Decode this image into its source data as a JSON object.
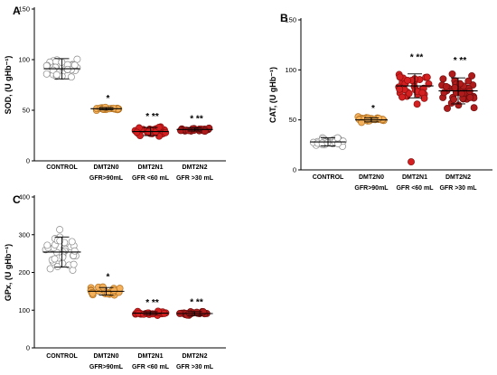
{
  "colors": {
    "control_fill": "#ffffff",
    "control_stroke": "#8a8a8a",
    "dmt2n0_fill": "#f4b05a",
    "dmt2n0_stroke": "#b07020",
    "dmt2n1_fill": "#d42020",
    "dmt2n1_stroke": "#8a1010",
    "dmt2n2_fill": "#b01c1c",
    "dmt2n2_stroke": "#6e0e0e"
  },
  "chart_data": [
    {
      "panel": "A",
      "type": "scatter",
      "ylabel": "SOD, (U gHb⁻¹)",
      "ylim": [
        0,
        150
      ],
      "yticks": [
        0,
        50,
        100,
        150
      ],
      "categories": [
        {
          "lines": [
            "CONTROL"
          ]
        },
        {
          "lines": [
            "DMT2N0",
            "GFR>90mL"
          ]
        },
        {
          "lines": [
            "DMT2N1",
            "GFR <60 mL"
          ]
        },
        {
          "lines": [
            "DMT2N2",
            "GFR >30 mL"
          ]
        }
      ],
      "groups": [
        {
          "mean": 91,
          "sd": 10,
          "n": 36,
          "spread": 0.7,
          "significance": ""
        },
        {
          "mean": 51.5,
          "sd": 1.2,
          "n": 22,
          "spread": 0.55,
          "significance": "*"
        },
        {
          "mean": 29,
          "sd": 4,
          "n": 30,
          "spread": 0.7,
          "significance": "* **"
        },
        {
          "mean": 31,
          "sd": 1.5,
          "n": 26,
          "spread": 0.7,
          "significance": "* **"
        }
      ]
    },
    {
      "panel": "B",
      "type": "scatter",
      "ylabel": "CAT, (U gHb⁻¹)",
      "ylim": [
        0,
        150
      ],
      "yticks": [
        0,
        50,
        100,
        150
      ],
      "categories": [
        {
          "lines": [
            "CONTROL"
          ]
        },
        {
          "lines": [
            "DMT2N0",
            "GFR>90mL"
          ]
        },
        {
          "lines": [
            "DMT2N1",
            "GFR <60 mL"
          ]
        },
        {
          "lines": [
            "DMT2N2",
            "GFR >30 mL"
          ]
        }
      ],
      "groups": [
        {
          "mean": 28,
          "sd": 4,
          "n": 34,
          "spread": 0.7,
          "significance": ""
        },
        {
          "mean": 50,
          "sd": 2,
          "n": 22,
          "spread": 0.6,
          "significance": "*"
        },
        {
          "mean": 84,
          "sd": 12,
          "n": 34,
          "spread": 0.75,
          "significance": "* **",
          "outlier": 8
        },
        {
          "mean": 79,
          "sd": 13,
          "n": 44,
          "spread": 0.8,
          "significance": "* **"
        }
      ]
    },
    {
      "panel": "C",
      "type": "scatter",
      "ylabel": "GPx, (U gHb⁻¹)",
      "ylim": [
        0,
        400
      ],
      "yticks": [
        0,
        100,
        200,
        300,
        400
      ],
      "categories": [
        {
          "lines": [
            "CONTROL"
          ]
        },
        {
          "lines": [
            "DMT2N0",
            "GFR>90mL"
          ]
        },
        {
          "lines": [
            "DMT2N1",
            "GFR <60 mL"
          ]
        },
        {
          "lines": [
            "DMT2N2",
            "GFR >30 mL"
          ]
        }
      ],
      "groups": [
        {
          "mean": 254,
          "sd": 40,
          "n": 38,
          "spread": 0.75,
          "significance": ""
        },
        {
          "mean": 150,
          "sd": 10,
          "n": 24,
          "spread": 0.7,
          "significance": "*"
        },
        {
          "mean": 92,
          "sd": 4,
          "n": 24,
          "spread": 0.7,
          "significance": "* **"
        },
        {
          "mean": 91,
          "sd": 5,
          "n": 26,
          "spread": 0.7,
          "significance": "* **"
        }
      ]
    }
  ]
}
